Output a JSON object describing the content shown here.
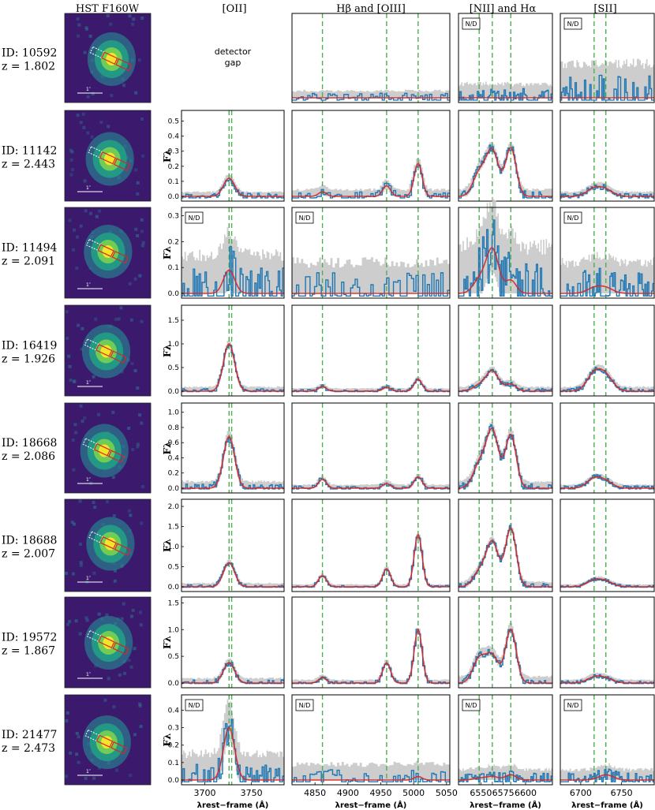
{
  "column_titles": [
    "HST F160W",
    "[OII]",
    "Hβ and [OIII]",
    "[NII] and Hα",
    "[SII]"
  ],
  "y_label": "Fλ",
  "x_label": "λrest−frame (Å)",
  "detector_gap_text": [
    "detector",
    "gap"
  ],
  "nd_label": "N/D",
  "scale_label": "1″",
  "colors": {
    "data": "#1f77b4",
    "model": "#d62728",
    "band": "#c8c8c8",
    "lines": "#4caf50",
    "cutout_bg": "#3b1a6e",
    "cutout_glow": "#f3e52a"
  },
  "chart_data": {
    "type": "line",
    "columns": [
      {
        "name": "[OII]",
        "xlim": [
          3675,
          3785
        ],
        "xticks": [
          3700,
          3750
        ],
        "lines": [
          3726.0,
          3728.8
        ],
        "widths": [
          6
        ]
      },
      {
        "name": "Hβ and [OIII]",
        "xlim": [
          4815,
          5055
        ],
        "xticks": [
          4850,
          4900,
          4950,
          5000,
          5050
        ],
        "lines": [
          4861.3,
          4958.9,
          5006.8
        ],
        "widths": [
          6,
          6,
          6
        ]
      },
      {
        "name": "[NII] and Hα",
        "xlim": [
          6525,
          6630
        ],
        "xticks": [
          6550,
          6575,
          6600
        ],
        "lines": [
          6548.1,
          6562.8,
          6583.5
        ],
        "widths": [
          7,
          7,
          6
        ]
      },
      {
        "name": "[SII]",
        "xlim": [
          6675,
          6790
        ],
        "xticks": [
          6700,
          6750
        ],
        "lines": [
          6716.4,
          6730.8
        ],
        "widths": [
          9,
          9
        ]
      }
    ],
    "rows": [
      {
        "id": "ID: 10592",
        "z": "z = 1.802",
        "ymax": 0.35,
        "yticks": [],
        "gap": true,
        "nd": [
          false,
          false,
          true,
          true
        ],
        "noise": [
          0,
          0.01,
          0.02,
          0.05
        ],
        "amps": [
          [
            0
          ],
          [
            0,
            0,
            0
          ],
          [
            0,
            0,
            0
          ],
          [
            0,
            0
          ]
        ]
      },
      {
        "id": "ID: 11142",
        "z": "z = 2.443",
        "ymax": 0.55,
        "yticks": [
          "0.0",
          "0.1",
          "0.2",
          "0.3",
          "0.4",
          "0.5"
        ],
        "gap": false,
        "nd": [
          false,
          false,
          false,
          false
        ],
        "noise": [
          0.01,
          0.015,
          0.015,
          0.01
        ],
        "amps": [
          [
            0.12
          ],
          [
            0.03,
            0.07,
            0.22
          ],
          [
            0.15,
            0.3,
            0.32
          ],
          [
            0.05,
            0.04
          ]
        ]
      },
      {
        "id": "ID: 11494",
        "z": "z = 2.091",
        "ymax": 0.32,
        "yticks": [
          "0.0",
          "0.1",
          "0.2",
          "0.3"
        ],
        "gap": false,
        "nd": [
          true,
          true,
          false,
          true
        ],
        "noise": [
          0.05,
          0.04,
          0.06,
          0.04
        ],
        "amps": [
          [
            0.09
          ],
          [
            0,
            0,
            0
          ],
          [
            0.05,
            0.17,
            0.05
          ],
          [
            0.02,
            0.02
          ]
        ]
      },
      {
        "id": "ID: 16419",
        "z": "z = 1.926",
        "ymax": 1.75,
        "yticks": [
          "0.0",
          "0.5",
          "1.0",
          "1.5"
        ],
        "gap": false,
        "nd": [
          false,
          false,
          false,
          false
        ],
        "noise": [
          0.03,
          0.02,
          0.03,
          0.03
        ],
        "amps": [
          [
            1.0
          ],
          [
            0.1,
            0.08,
            0.25
          ],
          [
            0.12,
            0.42,
            0.15
          ],
          [
            0.35,
            0.3
          ]
        ]
      },
      {
        "id": "ID: 18668",
        "z": "z = 2.086",
        "ymax": 1.08,
        "yticks": [
          "0.0",
          "0.2",
          "0.4",
          "0.6",
          "0.8",
          "1.0"
        ],
        "gap": false,
        "nd": [
          false,
          false,
          false,
          false
        ],
        "noise": [
          0.03,
          0.015,
          0.03,
          0.015
        ],
        "amps": [
          [
            0.68
          ],
          [
            0.12,
            0.06,
            0.15
          ],
          [
            0.3,
            0.75,
            0.7
          ],
          [
            0.12,
            0.08
          ]
        ]
      },
      {
        "id": "ID: 18688",
        "z": "z = 2.007",
        "ymax": 2.1,
        "yticks": [
          "0.0",
          "0.5",
          "1.0",
          "1.5",
          "2.0"
        ],
        "gap": false,
        "nd": [
          false,
          false,
          false,
          false
        ],
        "noise": [
          0.03,
          0.02,
          0.04,
          0.02
        ],
        "amps": [
          [
            0.6
          ],
          [
            0.28,
            0.45,
            1.3
          ],
          [
            0.35,
            1.1,
            1.45
          ],
          [
            0.15,
            0.12
          ]
        ]
      },
      {
        "id": "ID: 19572",
        "z": "z = 1.867",
        "ymax": 1.55,
        "yticks": [
          "0.0",
          "0.5",
          "1.0",
          "1.5"
        ],
        "gap": false,
        "nd": [
          false,
          false,
          false,
          false
        ],
        "noise": [
          0.03,
          0.02,
          0.04,
          0.02
        ],
        "amps": [
          [
            0.38
          ],
          [
            0.1,
            0.38,
            1.0
          ],
          [
            0.45,
            0.5,
            1.0
          ],
          [
            0.1,
            0.08
          ]
        ]
      },
      {
        "id": "ID: 21477",
        "z": "z = 2.473",
        "ymax": 0.47,
        "yticks": [
          "0.0",
          "0.1",
          "0.2",
          "0.3",
          "0.4"
        ],
        "gap": false,
        "nd": [
          true,
          true,
          true,
          true
        ],
        "noise": [
          0.05,
          0.03,
          0.02,
          0.02
        ],
        "amps": [
          [
            0.3
          ],
          [
            0,
            0,
            0.02
          ],
          [
            0.01,
            0.02,
            0.03
          ],
          [
            0,
            0.03
          ]
        ]
      }
    ]
  }
}
